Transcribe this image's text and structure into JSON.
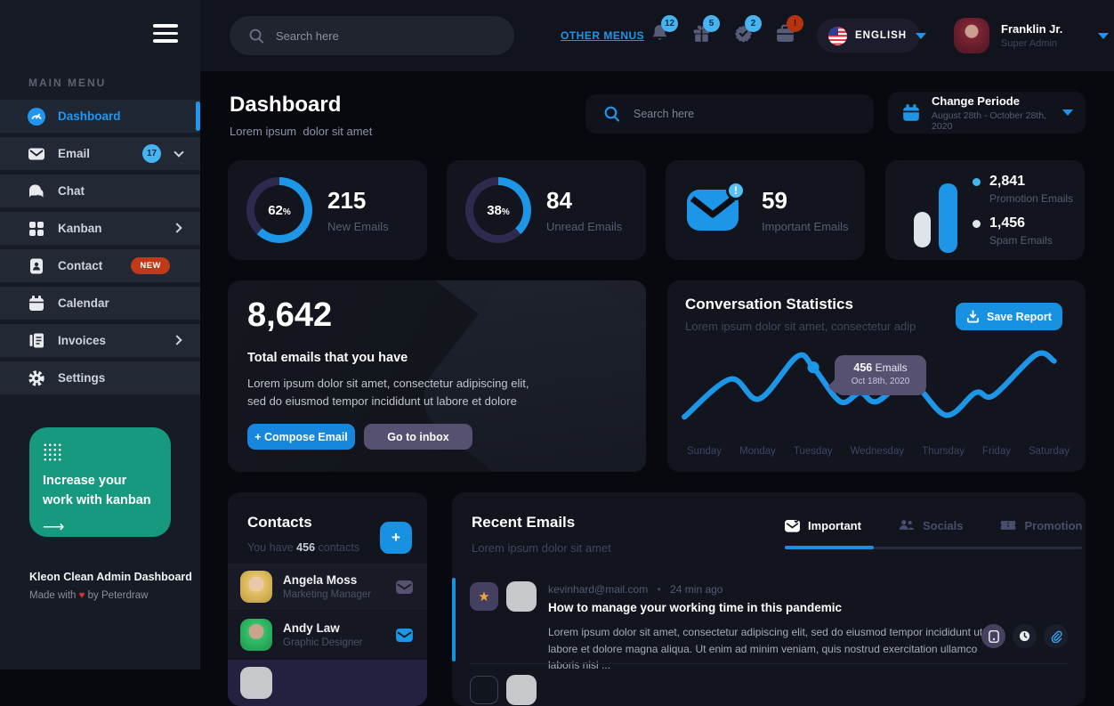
{
  "app": {
    "footer_title": "Kleon Clean Admin Dashboard",
    "credit_pre": "Made with",
    "credit_heart": "♥",
    "credit_post": "by Peterdraw"
  },
  "icons": {
    "star": "★",
    "plus": "+",
    "arrow": "⟶",
    "alert": "!"
  },
  "sidebar": {
    "section_label": "MAIN MENU",
    "items": [
      {
        "label": "Dashboard",
        "icon": "dashboard-icon",
        "active": true
      },
      {
        "label": "Email",
        "icon": "email-icon",
        "badge": "17"
      },
      {
        "label": "Chat",
        "icon": "chat-icon"
      },
      {
        "label": "Kanban",
        "icon": "kanban-icon"
      },
      {
        "label": "Contact",
        "icon": "contact-icon",
        "tag": "NEW"
      },
      {
        "label": "Calendar",
        "icon": "calendar-icon"
      },
      {
        "label": "Invoices",
        "icon": "invoices-icon"
      },
      {
        "label": "Settings",
        "icon": "settings-icon"
      }
    ],
    "promo": {
      "line1": "Increase your",
      "line2": "work with kanban"
    }
  },
  "topbar": {
    "search_placeholder": "Search here",
    "other_menus": "OTHER MENUS",
    "notifications": [
      {
        "icon": "bell-icon",
        "badge": "12"
      },
      {
        "icon": "gift-icon",
        "badge": "5"
      },
      {
        "icon": "check-circle-icon",
        "badge": "2"
      },
      {
        "icon": "briefcase-icon",
        "badge": "!"
      }
    ],
    "language": "ENGLISH",
    "user": {
      "name": "Franklin Jr.",
      "role": "Super Admin"
    }
  },
  "header": {
    "title": "Dashboard",
    "subtitle": "Lorem ipsum  dolor sit amet",
    "search_placeholder": "Search here",
    "periode": {
      "title": "Change Periode",
      "range": "August 28th - October 28th, 2020"
    }
  },
  "stats": {
    "cards": [
      {
        "percent": 62,
        "value": "215",
        "label": "New Emails"
      },
      {
        "percent": 38,
        "value": "84",
        "label": "Unread Emails"
      },
      {
        "value": "59",
        "label": "Important Emails",
        "badge": "!"
      },
      {
        "legend": [
          {
            "value": "2,841",
            "label": "Promotion Emails",
            "color": "#45b4f1"
          },
          {
            "value": "1,456",
            "label": "Spam Emails",
            "color": "#dde4ea"
          }
        ]
      }
    ]
  },
  "overview": {
    "total": "8,642",
    "title": "Total emails that you have",
    "body": "Lorem ipsum dolor sit amet, consectetur adipiscing elit, sed do eiusmod tempor incididunt ut labore et dolore",
    "compose_label": "+ Compose Email",
    "inbox_label": "Go to inbox"
  },
  "conversation": {
    "title": "Conversation Statistics",
    "subtitle": "Lorem ipsum dolor sit amet, consectetur adip",
    "save_label": "Save Report",
    "chart_data": {
      "type": "line",
      "x": [
        "Sunday",
        "Monday",
        "Tuesday",
        "Wednesday",
        "Thursday",
        "Friday",
        "Saturday"
      ],
      "points": [
        [
          7,
          82
        ],
        [
          58,
          40
        ],
        [
          90,
          62
        ],
        [
          132,
          15
        ],
        [
          150,
          27
        ],
        [
          180,
          65
        ],
        [
          202,
          55
        ],
        [
          220,
          65
        ],
        [
          257,
          43
        ],
        [
          297,
          80
        ],
        [
          330,
          55
        ],
        [
          350,
          58
        ],
        [
          397,
          13
        ],
        [
          417,
          20
        ]
      ],
      "dot_index": 4,
      "line_color": "#1e96e8",
      "highlight": {
        "value": "456",
        "unit": "Emails",
        "date": "Oct 18th, 2020"
      }
    }
  },
  "contacts": {
    "title": "Contacts",
    "sub_pre": "You have",
    "count": "456",
    "sub_post": "contacts",
    "list": [
      {
        "name": "Angela Moss",
        "role": "Marketing Manager"
      },
      {
        "name": "Andy Law",
        "role": "Graphic Designer"
      }
    ]
  },
  "emails": {
    "title": "Recent Emails",
    "subtitle": "Lorem ipsum dolor sit amet",
    "tabs": [
      {
        "label": "Important",
        "active": true
      },
      {
        "label": "Socials"
      },
      {
        "label": "Promotion"
      }
    ],
    "items": [
      {
        "from": "kevinhard@mail.com",
        "sep": "•",
        "time": "24 min ago",
        "subject": "How to manage your working time in this pandemic",
        "body": "Lorem ipsum dolor sit amet, consectetur adipiscing elit, sed do eiusmod tempor incididunt ut labore et dolore magna aliqua. Ut enim ad minim veniam, quis nostrud exercitation ullamco laboris nisi ..."
      }
    ]
  }
}
